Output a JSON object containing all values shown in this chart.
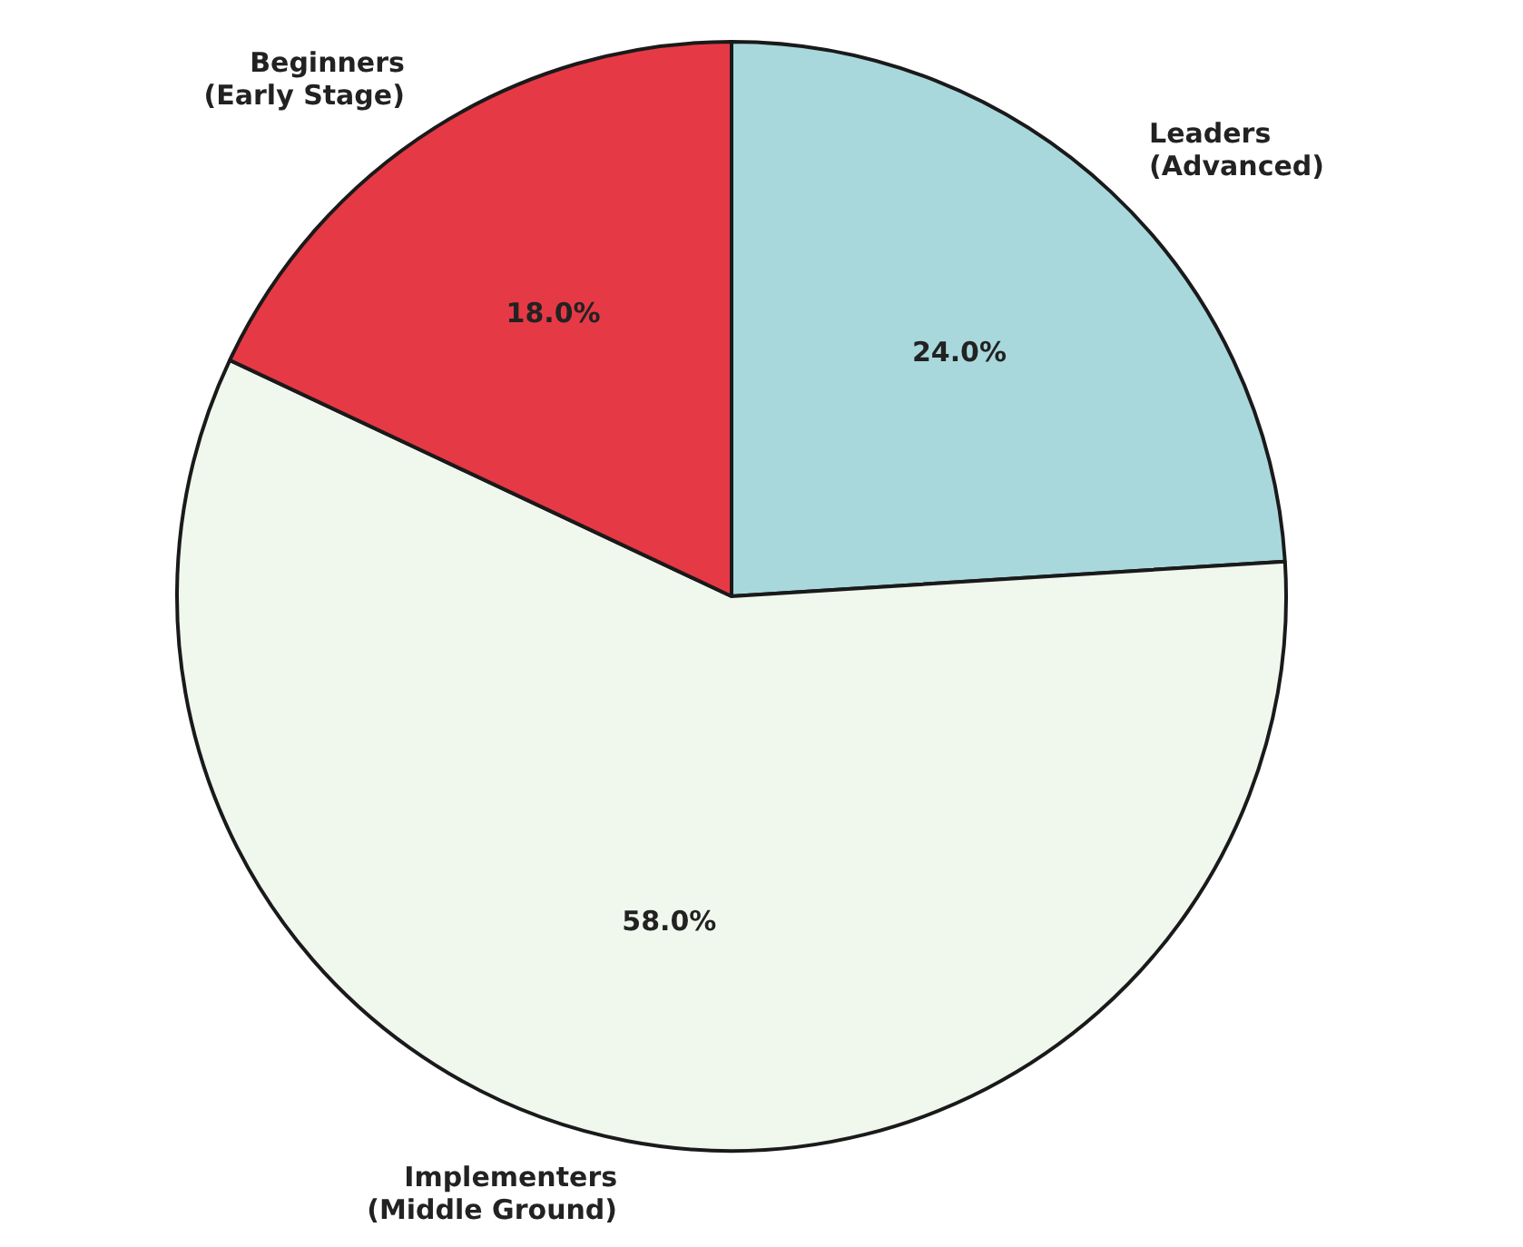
{
  "chart_data": {
    "type": "pie",
    "categories": [
      "Leaders (Advanced)",
      "Implementers (Middle Ground)",
      "Beginners (Early Stage)"
    ],
    "values": [
      24.0,
      58.0,
      18.0
    ],
    "colors": [
      "#a8d8dc",
      "#f0f8ee",
      "#e63946"
    ],
    "value_labels": [
      "24.0%",
      "58.0%",
      "18.0%"
    ],
    "legend": false
  }
}
